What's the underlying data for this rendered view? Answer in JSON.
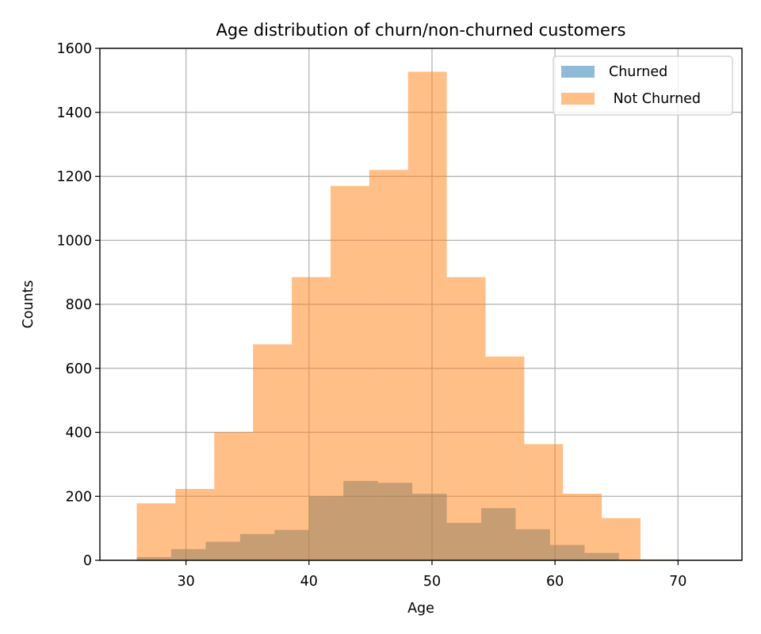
{
  "chart_data": {
    "type": "bar",
    "title": "Age distribution of churn/non-churned customers",
    "xlabel": "Age",
    "ylabel": "Counts",
    "xlim": [
      23,
      75.2
    ],
    "ylim": [
      0,
      1600
    ],
    "xticks": [
      30,
      40,
      50,
      60,
      70
    ],
    "yticks": [
      0,
      200,
      400,
      600,
      800,
      1000,
      1200,
      1400,
      1600
    ],
    "grid": true,
    "legend_position": "top-right",
    "series": [
      {
        "name": "Churned",
        "color": "#1f77b4",
        "alpha": 0.5,
        "bin_edges": [
          26.0,
          28.8,
          31.6,
          34.4,
          37.2,
          40.0,
          42.8,
          45.6,
          48.4,
          51.2,
          54.0,
          56.8,
          59.6,
          62.4,
          65.2
        ],
        "values": [
          10,
          35,
          58,
          82,
          95,
          200,
          248,
          242,
          208,
          117,
          163,
          97,
          48,
          23
        ]
      },
      {
        "name": " Not Churned",
        "color": "#ff7f0e",
        "alpha": 0.5,
        "bin_edges": [
          26.0,
          29.15,
          32.3,
          35.45,
          38.6,
          41.75,
          44.9,
          48.05,
          51.2,
          54.35,
          57.5,
          60.65,
          63.8,
          66.95,
          70.1,
          73.25
        ],
        "values": [
          178,
          223,
          400,
          675,
          885,
          1170,
          1220,
          1527,
          885,
          637,
          363,
          208,
          132,
          3,
          1
        ]
      }
    ]
  }
}
